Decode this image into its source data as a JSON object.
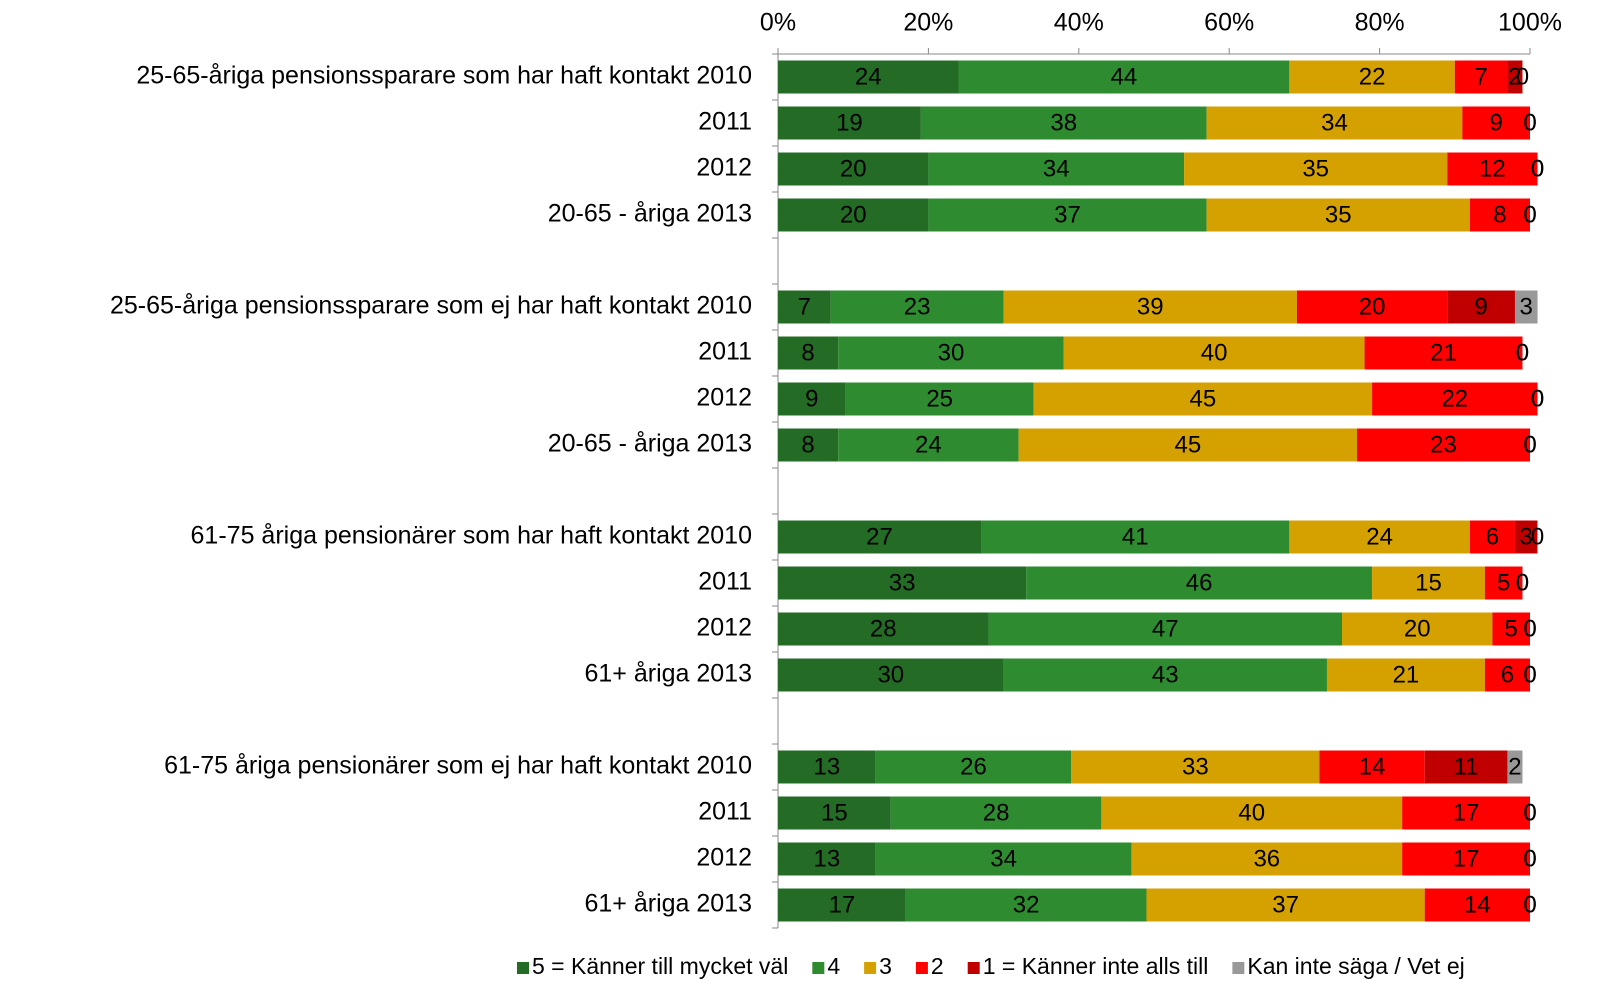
{
  "chart_data": {
    "type": "stacked_barh",
    "categories": [
      "25-65-åriga pensionssparare som har haft kontakt 2010",
      "2011",
      "2012",
      "20-65 - åriga 2013",
      null,
      "25-65-åriga pensionssparare som ej har haft kontakt 2010",
      "2011",
      "2012",
      "20-65 - åriga 2013",
      null,
      "61-75  åriga pensionärer som har haft kontakt 2010",
      "2011",
      "2012",
      "61+ åriga 2013",
      null,
      "61-75 åriga pensionärer som ej har haft kontakt 2010",
      "2011",
      "2012",
      "61+ åriga 2013"
    ],
    "series": [
      {
        "name": "5 = Känner till mycket väl",
        "color": "#246b25",
        "values": [
          24,
          19,
          20,
          20,
          null,
          7,
          8,
          9,
          8,
          null,
          27,
          33,
          28,
          30,
          null,
          13,
          15,
          13,
          17
        ]
      },
      {
        "name": "4",
        "color": "#2e8b2f",
        "values": [
          44,
          38,
          34,
          37,
          null,
          23,
          30,
          25,
          24,
          null,
          41,
          46,
          47,
          43,
          null,
          26,
          28,
          34,
          32
        ]
      },
      {
        "name": "3",
        "color": "#d4a100",
        "values": [
          22,
          34,
          35,
          35,
          null,
          39,
          40,
          45,
          45,
          null,
          24,
          15,
          20,
          21,
          null,
          33,
          40,
          36,
          37
        ]
      },
      {
        "name": "2",
        "color": "#ff0000",
        "values": [
          7,
          9,
          12,
          8,
          null,
          20,
          21,
          22,
          23,
          null,
          6,
          5,
          5,
          6,
          null,
          14,
          17,
          17,
          14
        ]
      },
      {
        "name": "1 = Känner inte alls till",
        "color": "#c00000",
        "values": [
          2,
          0,
          0,
          0,
          null,
          9,
          0,
          0,
          0,
          null,
          3,
          0,
          0,
          0,
          null,
          11,
          0,
          0,
          0
        ]
      },
      {
        "name": "Kan inte säga / Vet ej",
        "color": "#999999",
        "values": [
          0,
          0,
          0,
          0,
          null,
          3,
          0,
          0,
          0,
          null,
          0,
          0,
          0,
          0,
          null,
          2,
          0,
          0,
          0
        ]
      }
    ],
    "xlim": [
      0,
      100
    ],
    "xticks": [
      {
        "value": 0,
        "label": "0%"
      },
      {
        "value": 20,
        "label": "20%"
      },
      {
        "value": 40,
        "label": "40%"
      },
      {
        "value": 60,
        "label": "60%"
      },
      {
        "value": 80,
        "label": "80%"
      },
      {
        "value": 100,
        "label": "100%"
      }
    ],
    "legend": "bottom"
  }
}
